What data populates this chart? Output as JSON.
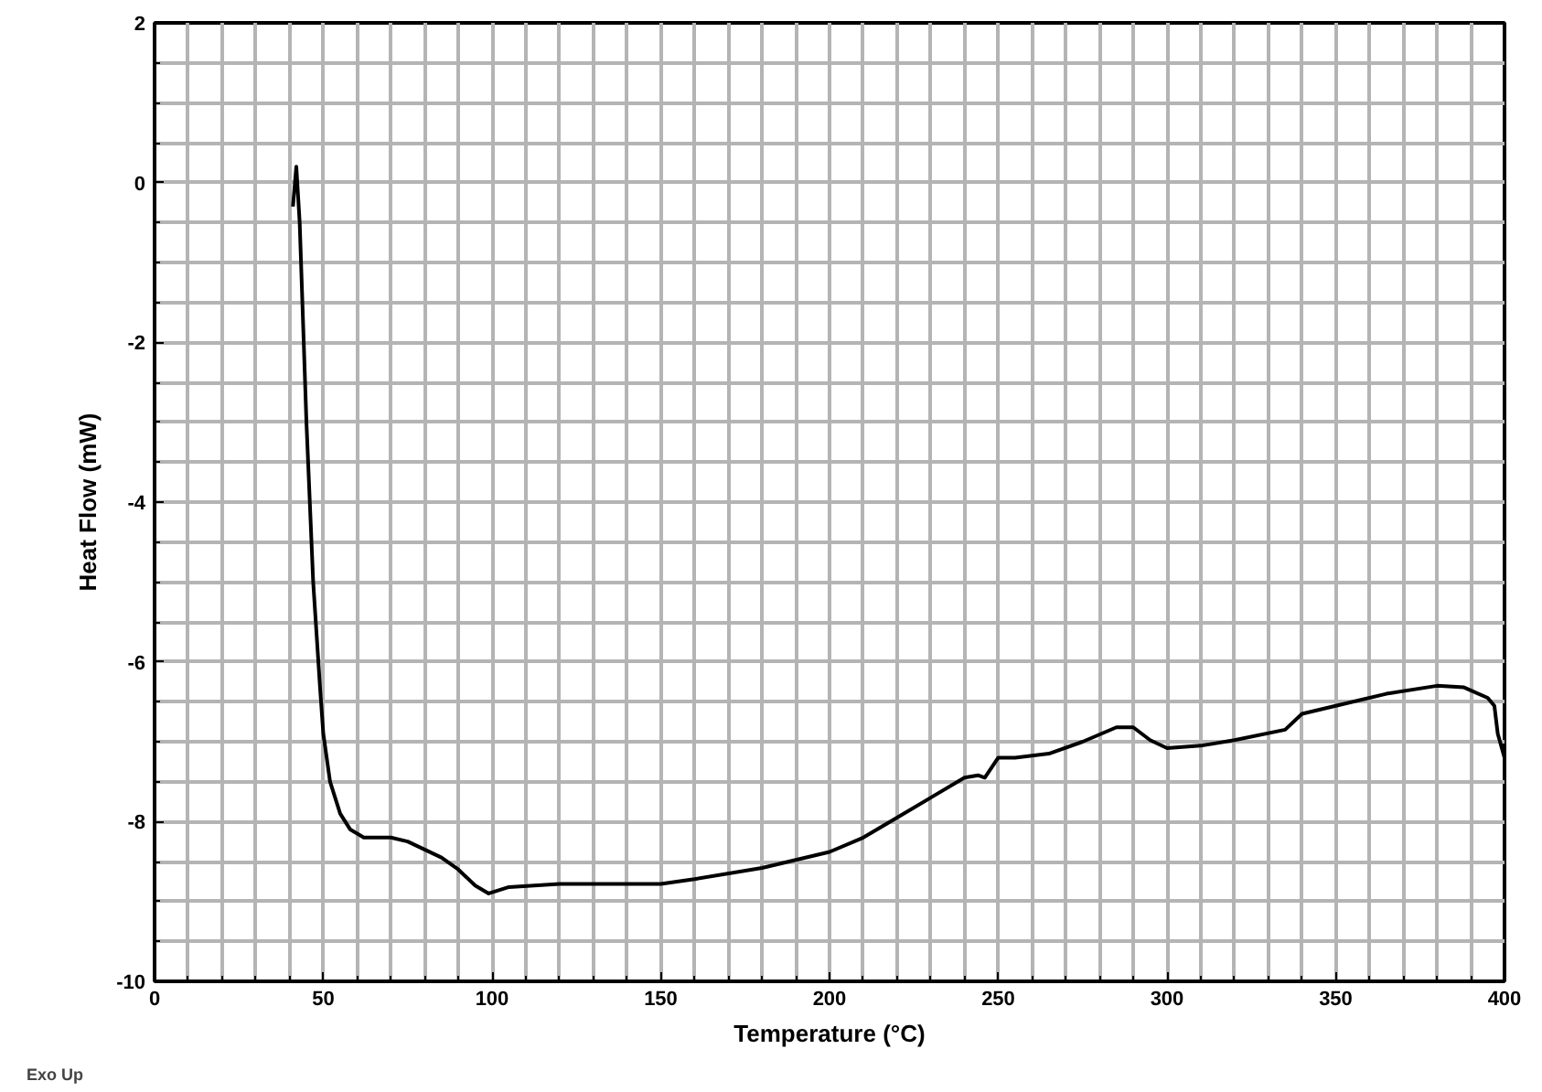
{
  "chart_data": {
    "type": "line",
    "xlabel": "Temperature (°C)",
    "ylabel": "Heat Flow (mW)",
    "annotations": [
      "Exo Up"
    ],
    "xlim": [
      0,
      400
    ],
    "ylim": [
      -10,
      2
    ],
    "xticks": [
      0,
      50,
      100,
      150,
      200,
      250,
      300,
      350,
      400
    ],
    "yticks": [
      -10,
      -8,
      -6,
      -4,
      -2,
      0,
      2
    ],
    "grid": true,
    "series": [
      {
        "color": "#000000",
        "x": [
          41,
          42,
          43,
          45,
          47,
          49,
          50,
          52,
          55,
          58,
          62,
          70,
          75,
          80,
          85,
          90,
          95,
          99,
          105,
          120,
          150,
          160,
          180,
          200,
          210,
          220,
          230,
          240,
          244,
          246,
          250,
          255,
          265,
          275,
          285,
          290,
          295,
          300,
          310,
          320,
          335,
          340,
          350,
          365,
          380,
          388,
          395,
          397,
          398,
          400
        ],
        "values": [
          -0.3,
          0.2,
          -0.5,
          -3.0,
          -5.0,
          -6.3,
          -6.9,
          -7.5,
          -7.9,
          -8.1,
          -8.2,
          -8.2,
          -8.25,
          -8.35,
          -8.45,
          -8.6,
          -8.8,
          -8.9,
          -8.82,
          -8.78,
          -8.78,
          -8.72,
          -8.58,
          -8.38,
          -8.2,
          -7.95,
          -7.7,
          -7.45,
          -7.42,
          -7.45,
          -7.2,
          -7.2,
          -7.15,
          -7.0,
          -6.82,
          -6.82,
          -6.98,
          -7.08,
          -7.05,
          -6.98,
          -6.85,
          -6.65,
          -6.55,
          -6.4,
          -6.3,
          -6.32,
          -6.45,
          -6.55,
          -6.9,
          -7.2
        ]
      }
    ]
  }
}
